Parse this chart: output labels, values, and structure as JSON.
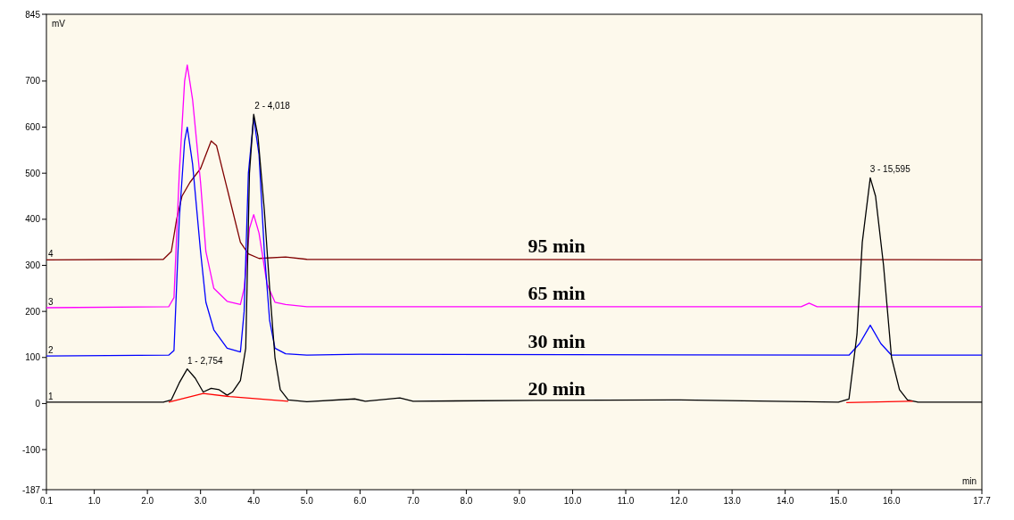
{
  "chart_data": {
    "type": "line",
    "xlabel": "min",
    "ylabel": "mV",
    "xlim": [
      0.1,
      17.7
    ],
    "ylim": [
      -187,
      845
    ],
    "xticks": [
      {
        "value": 0.1,
        "label": "0.1"
      },
      {
        "value": 1,
        "label": "1.0"
      },
      {
        "value": 2,
        "label": "2.0"
      },
      {
        "value": 3,
        "label": "3.0"
      },
      {
        "value": 4,
        "label": "4.0"
      },
      {
        "value": 5,
        "label": "5.0"
      },
      {
        "value": 6,
        "label": "6.0"
      },
      {
        "value": 7,
        "label": "7.0"
      },
      {
        "value": 8,
        "label": "8.0"
      },
      {
        "value": 9,
        "label": "9.0"
      },
      {
        "value": 10,
        "label": "10.0"
      },
      {
        "value": 11,
        "label": "11.0"
      },
      {
        "value": 12,
        "label": "12.0"
      },
      {
        "value": 13,
        "label": "13.0"
      },
      {
        "value": 14,
        "label": "14.0"
      },
      {
        "value": 15,
        "label": "15.0"
      },
      {
        "value": 16,
        "label": "16.0"
      },
      {
        "value": 17.7,
        "label": "17.7"
      }
    ],
    "yticks": [
      -187,
      -100,
      0,
      100,
      200,
      300,
      400,
      500,
      600,
      700,
      845
    ],
    "grid": false,
    "legend": false,
    "marker": "none",
    "line_style": "solid",
    "series": [
      {
        "name": "95 min",
        "color": "#800000",
        "x": [
          0.1,
          2.3,
          2.45,
          2.55,
          2.65,
          2.8,
          3.0,
          3.2,
          3.3,
          3.45,
          3.6,
          3.75,
          3.9,
          4.1,
          4.6,
          5.0,
          17.7
        ],
        "values": [
          312,
          313,
          330,
          400,
          450,
          480,
          510,
          570,
          560,
          490,
          420,
          350,
          325,
          315,
          318,
          313,
          312
        ]
      },
      {
        "name": "65 min",
        "color": "#ff00ff",
        "x": [
          0.1,
          2.4,
          2.5,
          2.6,
          2.7,
          2.75,
          2.85,
          3.0,
          3.1,
          3.25,
          3.5,
          3.75,
          3.82,
          3.92,
          4.0,
          4.1,
          4.25,
          4.4,
          4.6,
          5.0,
          14.3,
          14.45,
          14.6,
          17.7
        ],
        "values": [
          208,
          210,
          230,
          500,
          700,
          735,
          660,
          480,
          330,
          250,
          222,
          215,
          250,
          380,
          410,
          370,
          260,
          220,
          215,
          210,
          210,
          218,
          210,
          210
        ]
      },
      {
        "name": "30 min",
        "color": "#0000ff",
        "x": [
          0.1,
          2.4,
          2.5,
          2.6,
          2.7,
          2.75,
          2.85,
          3.0,
          3.1,
          3.25,
          3.5,
          3.75,
          3.82,
          3.9,
          4.0,
          4.1,
          4.2,
          4.3,
          4.4,
          4.6,
          5.0,
          6.0,
          15.2,
          15.4,
          15.6,
          15.8,
          16.0,
          17.7
        ],
        "values": [
          103,
          105,
          115,
          400,
          570,
          600,
          520,
          330,
          220,
          160,
          120,
          112,
          200,
          500,
          620,
          540,
          330,
          180,
          120,
          108,
          105,
          107,
          105,
          130,
          170,
          130,
          105,
          105
        ]
      },
      {
        "name": "20 min",
        "color": "#000000",
        "x": [
          0.1,
          2.3,
          2.45,
          2.6,
          2.75,
          2.9,
          3.05,
          3.2,
          3.35,
          3.5,
          3.6,
          3.75,
          3.85,
          3.92,
          4.0,
          4.08,
          4.2,
          4.3,
          4.4,
          4.5,
          4.65,
          5.0,
          5.9,
          6.1,
          6.75,
          7.0,
          9.3,
          11.9,
          15.0,
          15.2,
          15.35,
          15.45,
          15.6,
          15.7,
          15.85,
          16.0,
          16.15,
          16.3,
          16.5,
          17.7
        ],
        "values": [
          3,
          3,
          8,
          45,
          75,
          55,
          25,
          33,
          30,
          18,
          25,
          50,
          120,
          500,
          628,
          580,
          420,
          250,
          100,
          30,
          8,
          4,
          10,
          5,
          12,
          5,
          7,
          8,
          3,
          10,
          150,
          350,
          490,
          450,
          300,
          100,
          30,
          8,
          3,
          3
        ]
      },
      {
        "color": "#ff0000",
        "x": [
          2.4,
          3.05,
          3.55,
          4.65
        ],
        "values": [
          3,
          22,
          15,
          5
        ]
      },
      {
        "color": "#ff0000",
        "x": [
          15.15,
          16.4
        ],
        "values": [
          2,
          5
        ]
      }
    ],
    "annotations": [
      {
        "text": "1 - 2,754",
        "x": 2.754,
        "y": 75
      },
      {
        "text": "2 - 4,018",
        "x": 4.018,
        "y": 628
      },
      {
        "text": "3 - 15,595",
        "x": 15.595,
        "y": 490
      },
      {
        "text": "1",
        "x": 0.1,
        "y": 3
      },
      {
        "text": "2",
        "x": 0.1,
        "y": 103
      },
      {
        "text": "3",
        "x": 0.1,
        "y": 208
      },
      {
        "text": "4",
        "x": 0.1,
        "y": 312
      }
    ]
  }
}
